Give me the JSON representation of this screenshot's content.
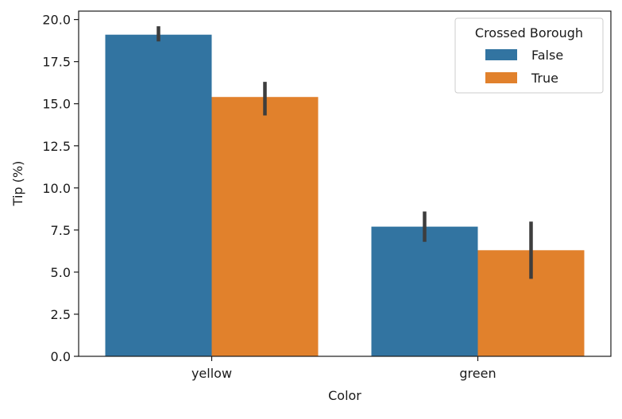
{
  "chart_data": {
    "type": "bar",
    "xlabel": "Color",
    "ylabel": "Tip (%)",
    "categories": [
      "yellow",
      "green"
    ],
    "ylim": [
      0,
      20.5
    ],
    "yticks": [
      "0.0",
      "2.5",
      "5.0",
      "7.5",
      "10.0",
      "12.5",
      "15.0",
      "17.5",
      "20.0"
    ],
    "legend": {
      "title": "Crossed Borough",
      "placement": "top-right"
    },
    "series": [
      {
        "name": "False",
        "color": "#3274a1",
        "values": [
          19.1,
          7.7
        ],
        "error_low": [
          18.7,
          6.8
        ],
        "error_high": [
          19.6,
          8.6
        ]
      },
      {
        "name": "True",
        "color": "#e1812c",
        "values": [
          15.4,
          6.3
        ],
        "error_low": [
          14.3,
          4.6
        ],
        "error_high": [
          16.3,
          8.0
        ]
      }
    ],
    "error_bar_color": "#3d3d3d",
    "grid": false
  }
}
